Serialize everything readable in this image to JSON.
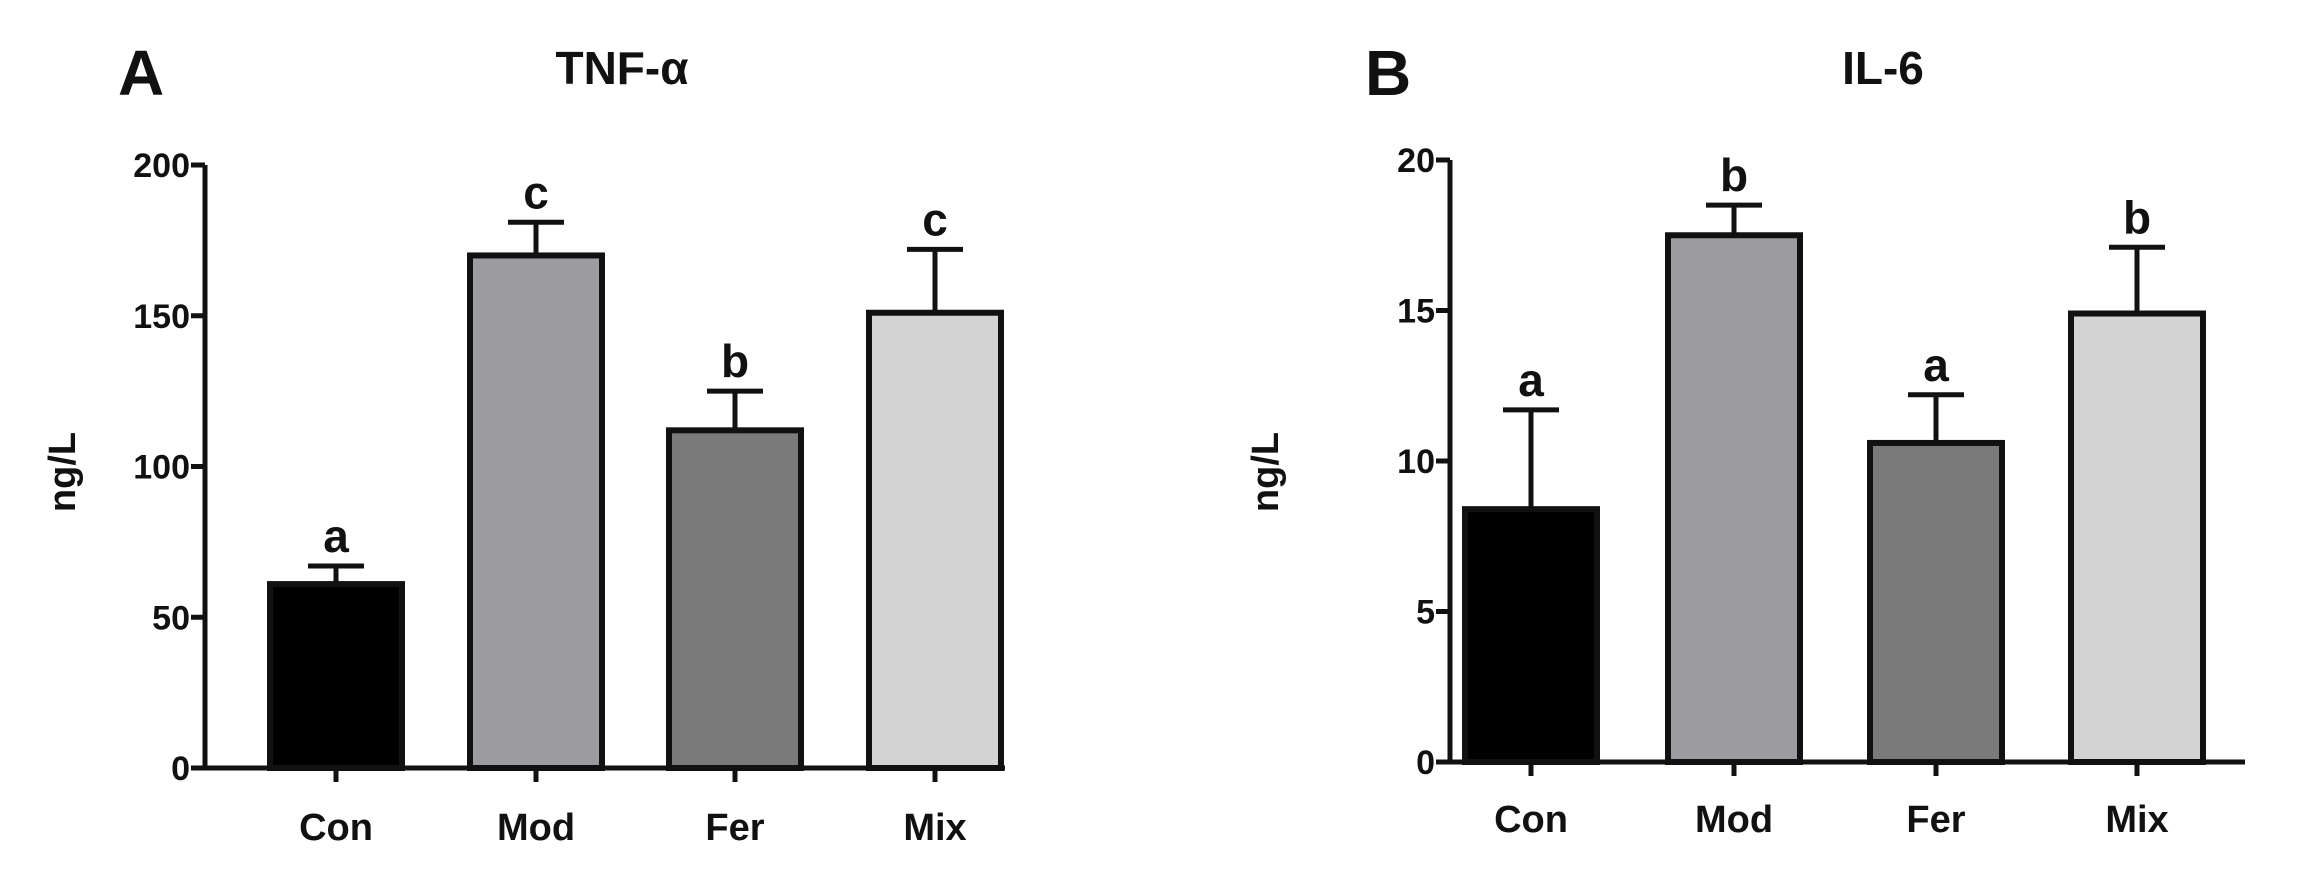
{
  "chart_data": [
    {
      "type": "bar",
      "panel": "A",
      "title": "TNF-α",
      "ylabel": "ng/L",
      "xlabel": "",
      "ylim": [
        0,
        200
      ],
      "yticks": [
        0,
        50,
        100,
        150,
        200
      ],
      "categories": [
        "Con",
        "Mod",
        "Fer",
        "Mix"
      ],
      "values": [
        61,
        170,
        112,
        151
      ],
      "errors": [
        6,
        11,
        13,
        21
      ],
      "significance": [
        "a",
        "c",
        "b",
        "c"
      ],
      "colors": [
        "#000000",
        "#9b9ba0",
        "#7a7a7a",
        "#d3d3d3"
      ],
      "grid": false
    },
    {
      "type": "bar",
      "panel": "B",
      "title": "IL-6",
      "ylabel": "ng/L",
      "xlabel": "",
      "ylim": [
        0,
        20
      ],
      "yticks": [
        0,
        5,
        10,
        15,
        20
      ],
      "categories": [
        "Con",
        "Mod",
        "Fer",
        "Mix"
      ],
      "values": [
        8.4,
        17.5,
        10.6,
        14.9
      ],
      "errors": [
        3.3,
        1.0,
        1.6,
        2.2
      ],
      "significance": [
        "a",
        "b",
        "a",
        "b"
      ],
      "colors": [
        "#000000",
        "#9b9ba0",
        "#7a7a7a",
        "#d3d3d3"
      ],
      "grid": false
    }
  ]
}
